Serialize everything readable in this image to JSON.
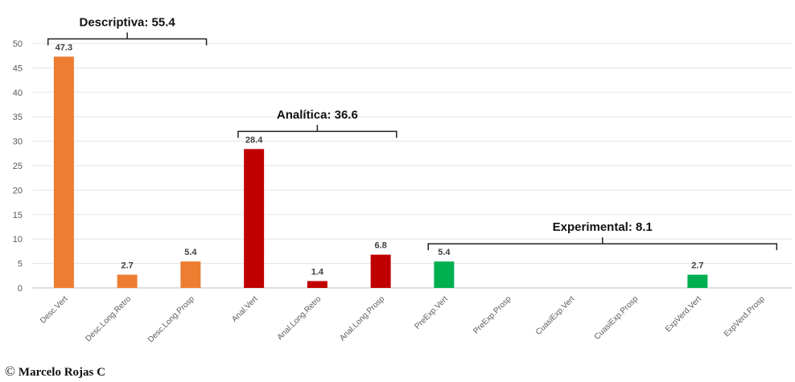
{
  "chart_data": {
    "type": "bar",
    "categories": [
      "Desc.Vert",
      "Desc.Long.Retro",
      "Desc.Long.Prosp",
      "Anal.Vert",
      "Anal.Long.Retro",
      "Anal.Long.Prosp",
      "PreExp.Vert",
      "PreExp.Prosp",
      "CuasiExp.Vert",
      "CuasiExp.Prosp",
      "ExpVerd.Vert",
      "ExpVerd.Prosp"
    ],
    "values": [
      47.3,
      2.7,
      5.4,
      28.4,
      1.4,
      6.8,
      5.4,
      null,
      null,
      null,
      2.7,
      null
    ],
    "data_labels": [
      "47.3",
      "2.7",
      "5.4",
      "28.4",
      "1.4",
      "6.8",
      "5.4",
      "",
      "",
      "",
      "2.7",
      ""
    ],
    "colors": [
      "#ed7d31",
      "#ed7d31",
      "#ed7d31",
      "#c00000",
      "#c00000",
      "#c00000",
      "#00b050",
      "#00b050",
      "#00b050",
      "#00b050",
      "#00b050",
      "#00b050"
    ],
    "ylim": [
      0,
      50
    ],
    "yticks": [
      "0",
      "5",
      "10",
      "15",
      "20",
      "25",
      "30",
      "35",
      "40",
      "45",
      "50"
    ],
    "grid": true,
    "xlabel": "",
    "ylabel": "",
    "groups": [
      {
        "label": "Descriptiva: 55.4",
        "start": 0,
        "end": 2
      },
      {
        "label": "Analítica: 36.6",
        "start": 3,
        "end": 5
      },
      {
        "label": "Experimental: 8.1",
        "start": 6,
        "end": 11
      }
    ]
  },
  "credit": {
    "symbol": "©",
    "text": "Marcelo Rojas C"
  }
}
